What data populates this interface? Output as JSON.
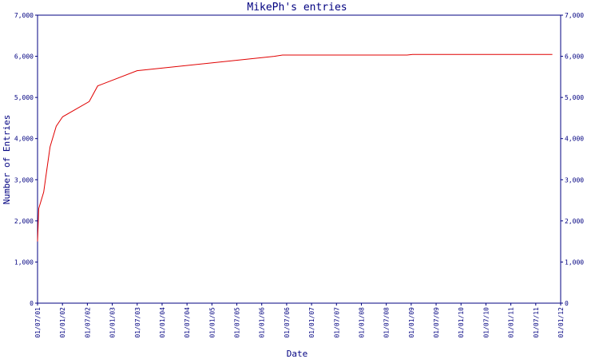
{
  "chart_data": {
    "type": "line",
    "title": "MikePh's entries",
    "xlabel": "Date",
    "ylabel": "Number of Entries",
    "ylim": [
      0,
      7000
    ],
    "yticks": [
      0,
      1000,
      2000,
      3000,
      4000,
      5000,
      6000,
      7000
    ],
    "ytick_labels": [
      "0",
      "1,000",
      "2,000",
      "3,000",
      "4,000",
      "5,000",
      "6,000",
      "7,000"
    ],
    "xlim": [
      "2001-07-01",
      "2012-01-01"
    ],
    "xtick_labels": [
      "01/07/01",
      "01/01/02",
      "01/07/02",
      "01/01/03",
      "01/07/03",
      "01/01/04",
      "01/07/04",
      "01/01/05",
      "01/07/05",
      "01/01/06",
      "01/07/06",
      "01/01/07",
      "01/07/07",
      "01/01/08",
      "01/07/08",
      "01/01/09",
      "01/07/09",
      "01/01/10",
      "01/07/10",
      "01/01/11",
      "01/07/11",
      "01/01/12"
    ],
    "grid": false,
    "series": [
      {
        "color": "#e00000",
        "points": [
          [
            "2001-07-01",
            1500
          ],
          [
            "2001-07-10",
            2300
          ],
          [
            "2001-08-15",
            2700
          ],
          [
            "2001-09-05",
            3200
          ],
          [
            "2001-10-01",
            3800
          ],
          [
            "2001-11-15",
            4300
          ],
          [
            "2002-01-01",
            4530
          ],
          [
            "2002-07-15",
            4900
          ],
          [
            "2002-09-15",
            5280
          ],
          [
            "2003-07-01",
            5650
          ],
          [
            "2006-04-01",
            6000
          ],
          [
            "2006-06-01",
            6030
          ],
          [
            "2008-12-01",
            6030
          ],
          [
            "2009-01-10",
            6045
          ],
          [
            "2011-11-01",
            6045
          ]
        ]
      }
    ]
  }
}
